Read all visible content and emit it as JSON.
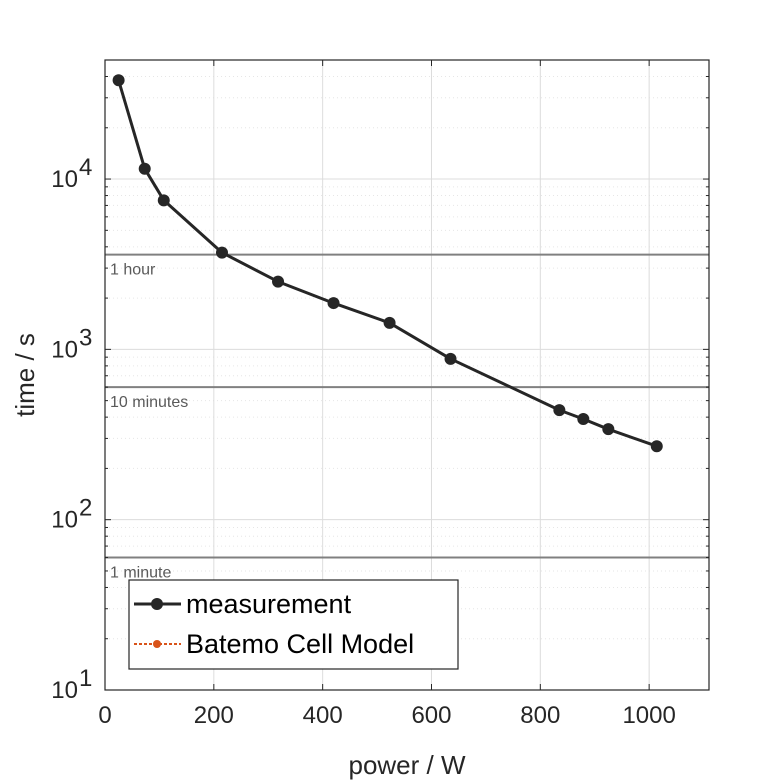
{
  "chart_data": {
    "type": "line",
    "xlabel": "power / W",
    "ylabel": "time / s",
    "xlim": [
      0,
      1110
    ],
    "ylim": [
      10,
      50000
    ],
    "yscale": "log",
    "grid": true,
    "x_ticks": [
      0,
      200,
      400,
      600,
      800,
      1000
    ],
    "x_tick_labels": [
      "0",
      "200",
      "400",
      "600",
      "800",
      "1000"
    ],
    "y_ticks": [
      {
        "value": 10,
        "base": "10",
        "exp": "1"
      },
      {
        "value": 100,
        "base": "10",
        "exp": "2"
      },
      {
        "value": 1000,
        "base": "10",
        "exp": "3"
      },
      {
        "value": 10000,
        "base": "10",
        "exp": "4"
      }
    ],
    "series": [
      {
        "name": "measurement",
        "color": "#262626",
        "marker": "circle",
        "x": [
          25,
          73,
          108,
          215,
          318,
          420,
          523,
          635,
          835,
          879,
          925,
          1014
        ],
        "y": [
          38000,
          11500,
          7500,
          3700,
          2500,
          1870,
          1430,
          880,
          440,
          390,
          340,
          270
        ]
      },
      {
        "name": "Batemo Cell Model",
        "color": "#d95319",
        "marker": "dot",
        "linestyle": "dotted",
        "x": [],
        "y": []
      }
    ],
    "reference_lines": [
      {
        "y": 3600,
        "label": "1 hour",
        "color": "#808080"
      },
      {
        "y": 600,
        "label": "10 minutes",
        "color": "#808080"
      },
      {
        "y": 60,
        "label": "1 minute",
        "color": "#808080"
      }
    ],
    "legend": {
      "placement": "bottom-left",
      "entries": [
        "measurement",
        "Batemo Cell Model"
      ]
    }
  }
}
